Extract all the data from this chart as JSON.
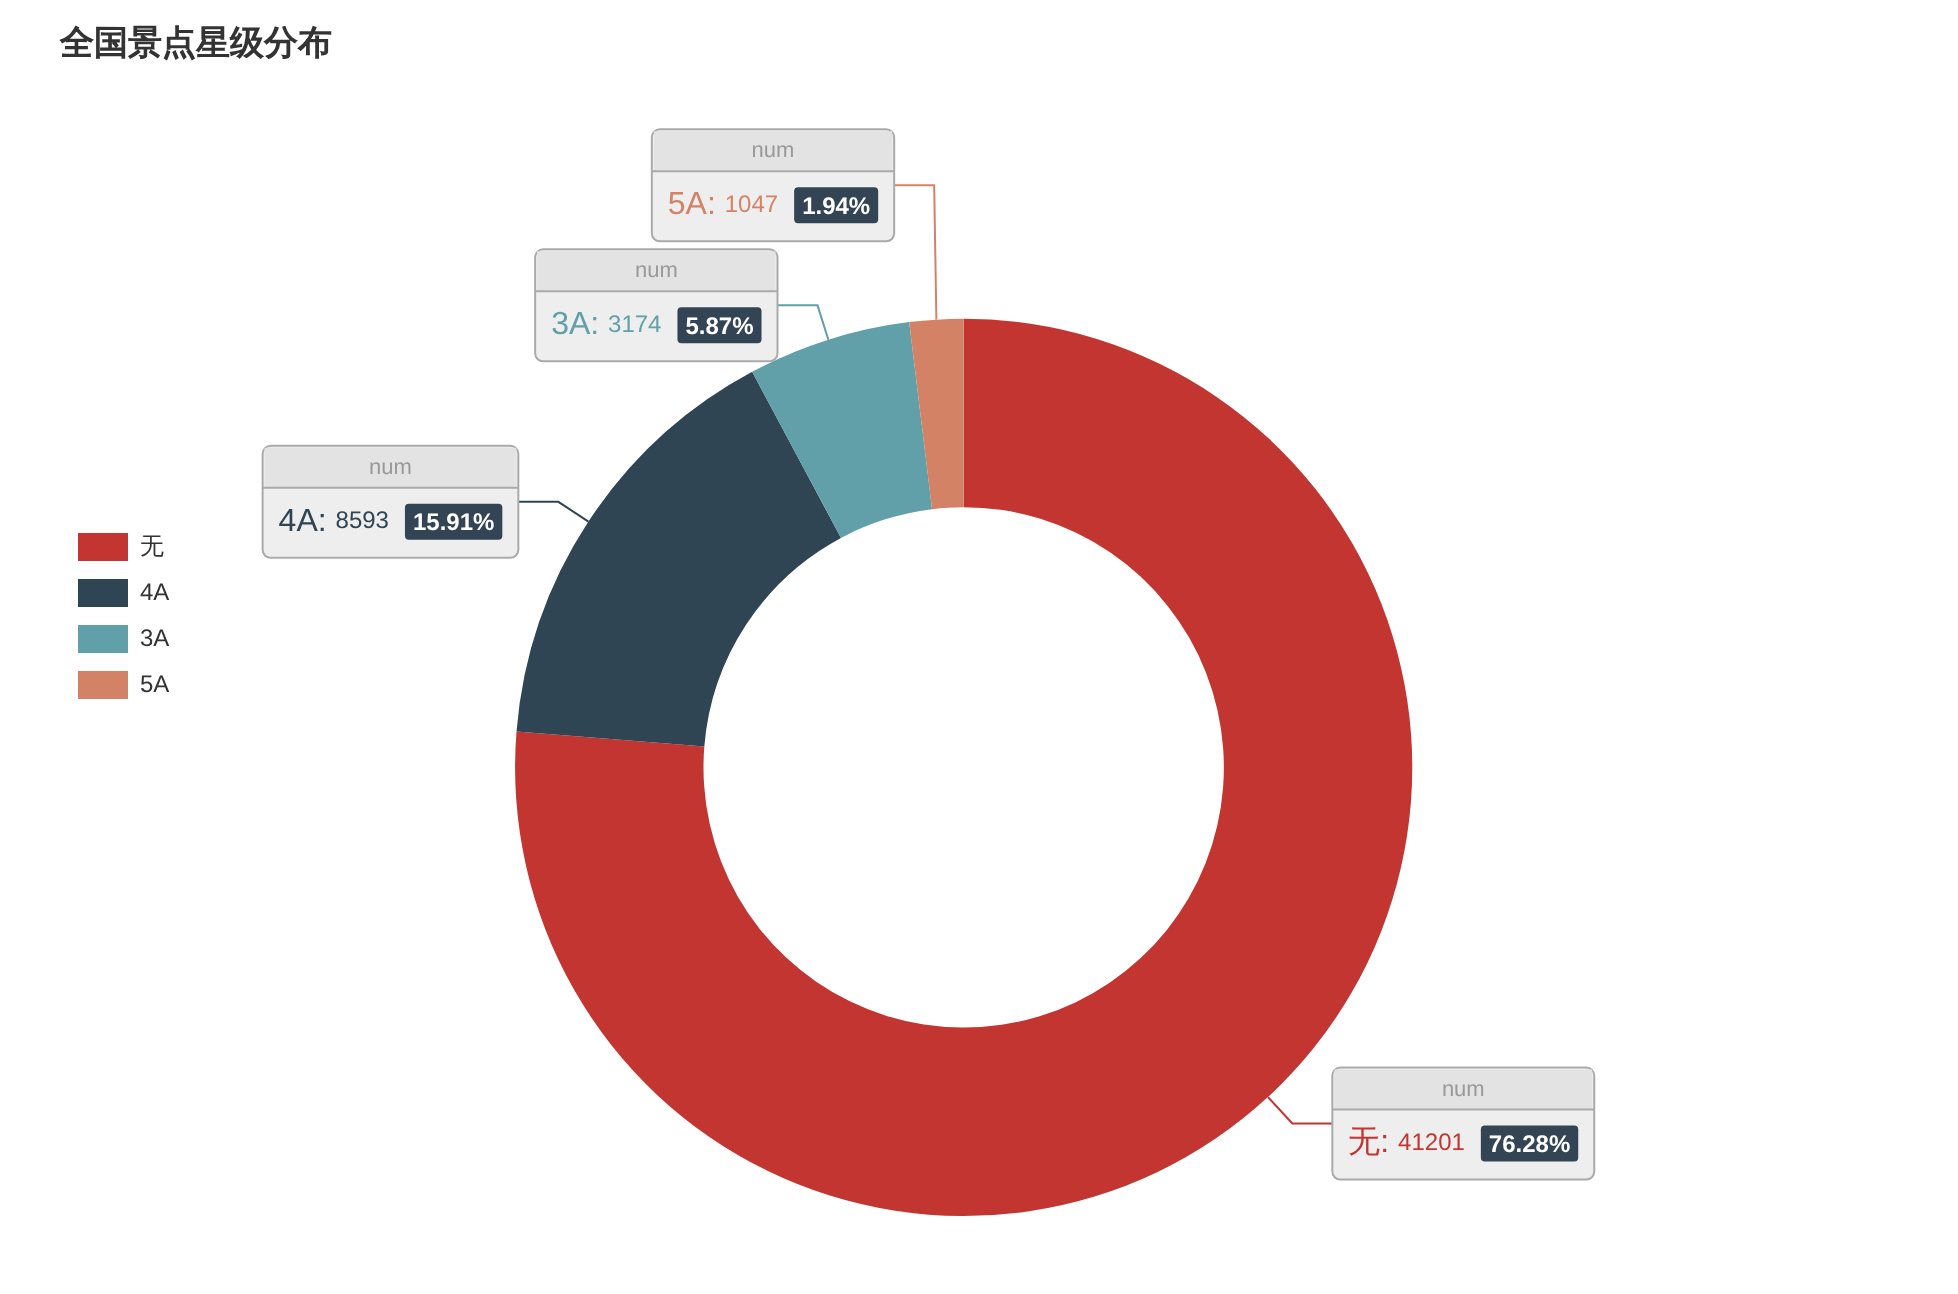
{
  "chart_data": {
    "type": "donut",
    "title": "全国景点星级分布",
    "categories": [
      "无",
      "4A",
      "3A",
      "5A"
    ],
    "series": [
      {
        "name": "num",
        "values": [
          41201,
          8593,
          3174,
          1047
        ],
        "value_labels": [
          "无: 41201 76.28%",
          "4A: 8593 15.91%",
          "3A: 3174 5.87%",
          "5A: 1047 1.94%"
        ]
      }
    ],
    "colors": [
      "#c23531",
      "#2f4554",
      "#61a0a8",
      "#d48265"
    ],
    "data_labels": true,
    "legend": "left"
  }
}
